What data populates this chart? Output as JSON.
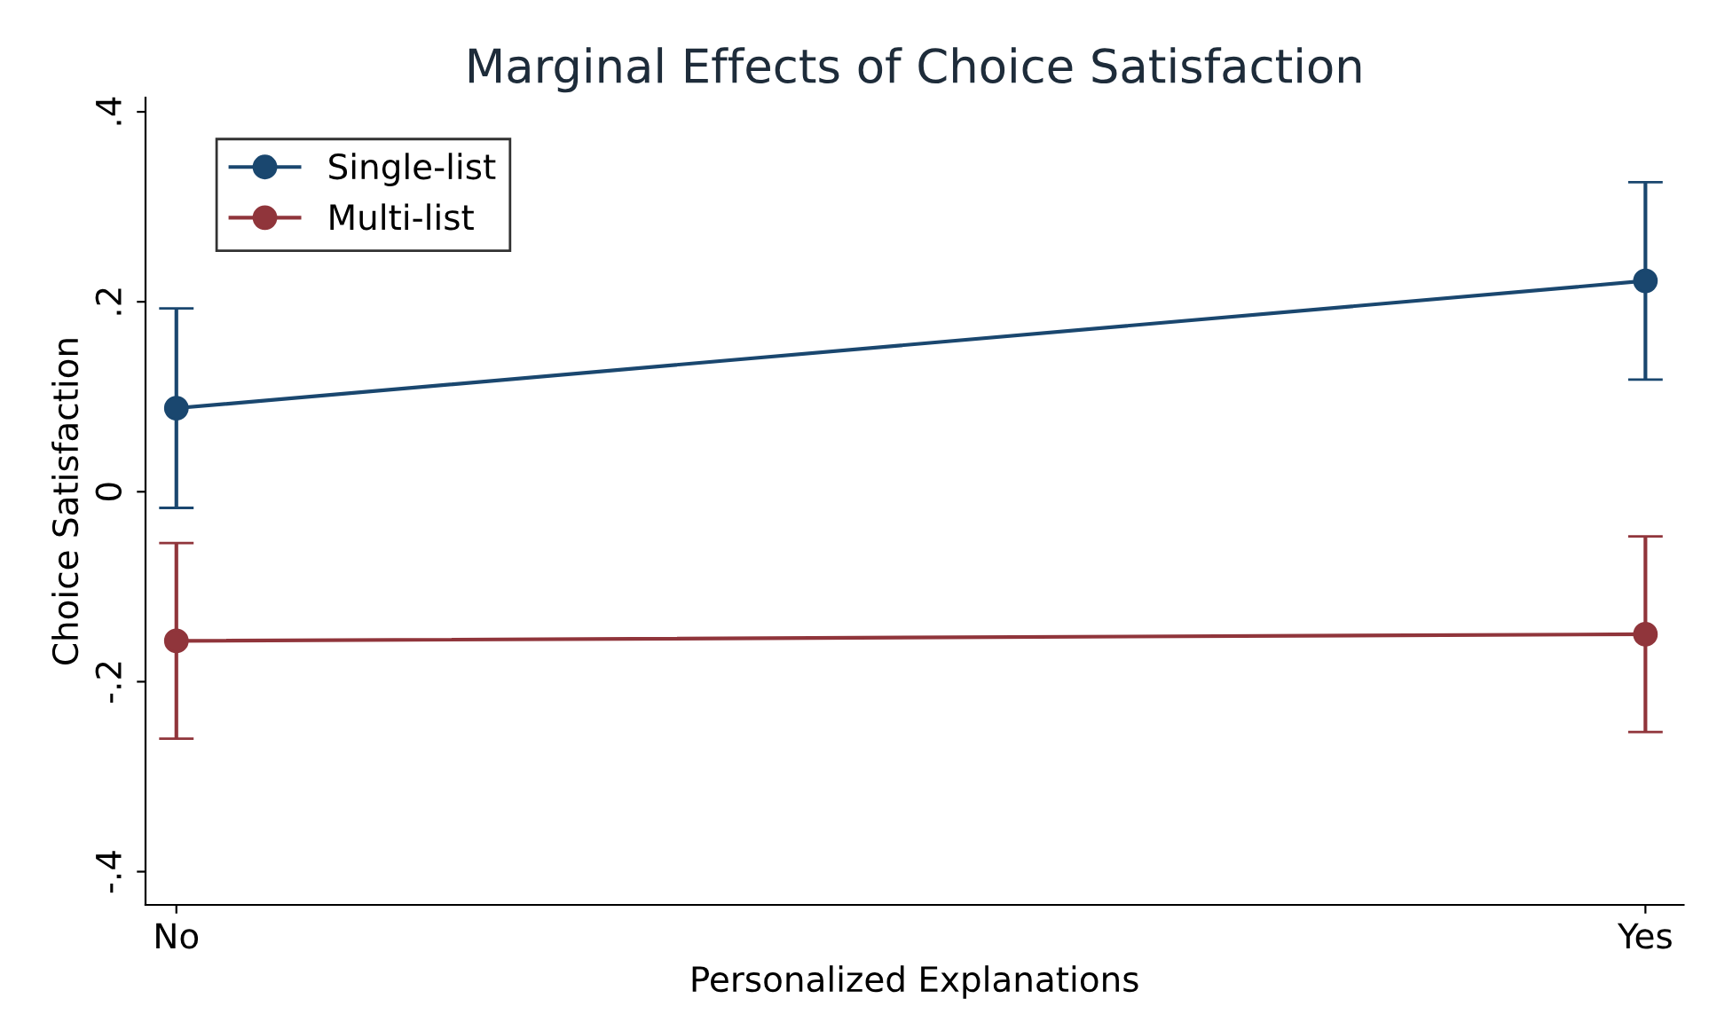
{
  "chart_data": {
    "type": "line",
    "title": "Marginal Effects of Choice Satisfaction",
    "xlabel": "Personalized Explanations",
    "ylabel": "Choice Satisfaction",
    "categories": [
      "No",
      "Yes"
    ],
    "series": [
      {
        "name": "Single-list",
        "color": "#1a476f",
        "values": [
          0.088,
          0.222
        ],
        "errors": [
          0.105,
          0.104
        ]
      },
      {
        "name": "Multi-list",
        "color": "#90353b",
        "values": [
          -0.157,
          -0.15
        ],
        "errors": [
          0.103,
          0.103
        ]
      }
    ],
    "ylim": [
      -0.435,
      0.415
    ],
    "yticks": [
      {
        "value": -0.4,
        "label": "-.4"
      },
      {
        "value": -0.2,
        "label": "-.2"
      },
      {
        "value": 0,
        "label": "0"
      },
      {
        "value": 0.2,
        "label": ".2"
      },
      {
        "value": 0.4,
        "label": ".4"
      }
    ],
    "marker": "circle",
    "line_style": "solid",
    "grid": false,
    "legend": "top left"
  }
}
